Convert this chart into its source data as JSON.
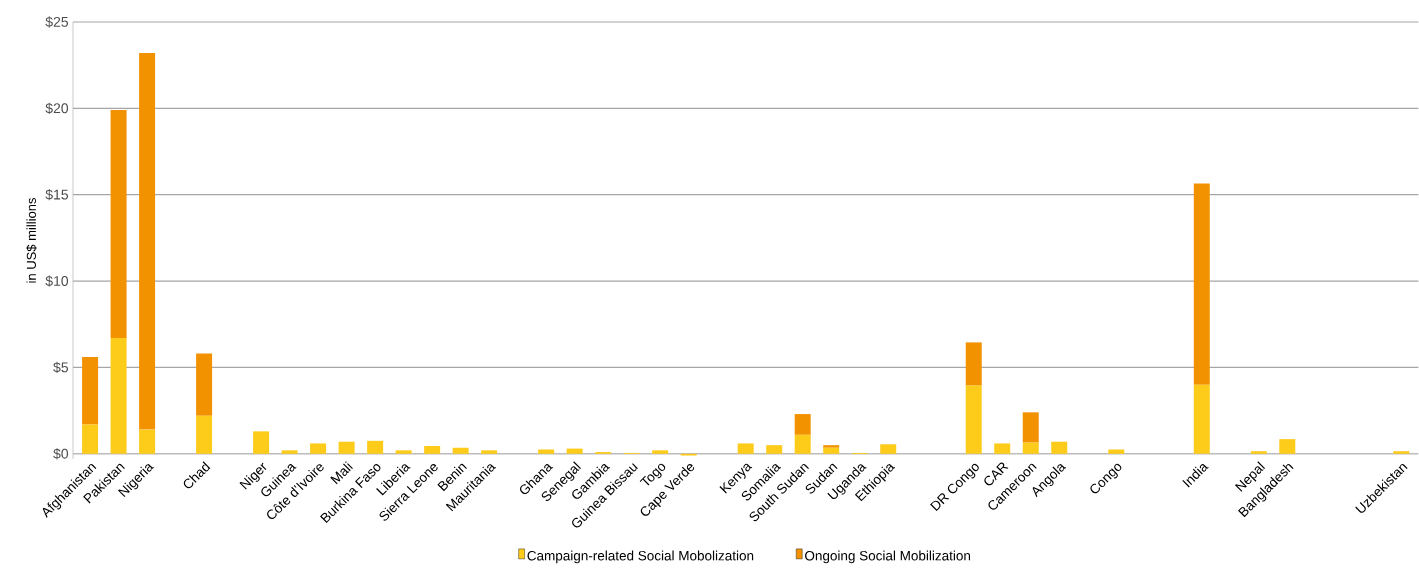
{
  "chart_data": {
    "type": "bar",
    "stacked": true,
    "ylabel": "in US$ millions",
    "categories": [
      "Afghanistan",
      "Pakistan",
      "Nigeria",
      null,
      "Chad",
      null,
      "Niger",
      "Guinea",
      "Côte d’Ivoire",
      "Mali",
      "Burkina Faso",
      "Liberia",
      "Sierra Leone",
      "Benin",
      "Mauritania",
      null,
      "Ghana",
      "Senegal",
      "Gambia",
      "Guinea Bissau",
      "Togo",
      "Cape Verde",
      null,
      "Kenya",
      "Somalia",
      "South Sudan",
      "Sudan",
      "Uganda",
      "Ethiopia",
      null,
      null,
      "DR Congo",
      "CAR",
      "Cameroon",
      "Angola",
      null,
      "Congo",
      null,
      null,
      "India",
      null,
      "Nepal",
      "Bangladesh",
      null,
      null,
      null,
      "Uzbekistan"
    ],
    "series": [
      {
        "name": "Campaign-related Social Mobolization",
        "color": "#fdcb1a",
        "values": [
          1.7,
          6.7,
          1.4,
          null,
          2.2,
          null,
          1.3,
          0.2,
          0.6,
          0.7,
          0.75,
          0.2,
          0.45,
          0.35,
          0.2,
          null,
          0.25,
          0.3,
          0.1,
          0.05,
          0.2,
          -0.1,
          null,
          0.6,
          0.5,
          1.1,
          0.35,
          0.05,
          0.55,
          null,
          null,
          3.95,
          0.6,
          0.65,
          0.7,
          null,
          0.25,
          null,
          null,
          4.0,
          null,
          0.15,
          0.85,
          null,
          null,
          null,
          0.15
        ]
      },
      {
        "name": "Ongoing Social Mobilization",
        "color": "#f39200",
        "values": [
          3.9,
          13.2,
          21.8,
          null,
          3.6,
          null,
          null,
          null,
          null,
          null,
          null,
          null,
          null,
          null,
          null,
          null,
          null,
          null,
          null,
          null,
          null,
          null,
          null,
          null,
          null,
          1.2,
          0.15,
          null,
          null,
          null,
          null,
          2.5,
          null,
          1.75,
          null,
          null,
          null,
          null,
          null,
          11.65,
          null,
          null,
          null,
          null,
          null,
          null,
          null
        ]
      }
    ],
    "ylim": [
      -0.3,
      25
    ],
    "yticks": [
      {
        "value": 0,
        "label": "$0"
      },
      {
        "value": 5,
        "label": "$5"
      },
      {
        "value": 10,
        "label": "$10"
      },
      {
        "value": 15,
        "label": "$15"
      },
      {
        "value": 20,
        "label": "$20"
      },
      {
        "value": 25,
        "label": "$25"
      }
    ],
    "grid": "y",
    "legend": "bottom"
  }
}
